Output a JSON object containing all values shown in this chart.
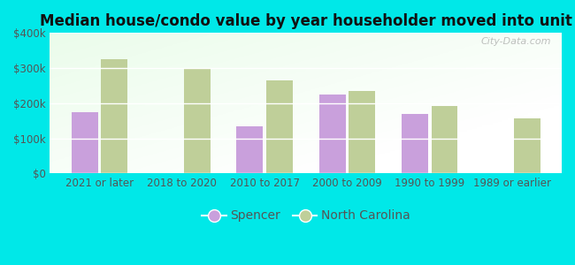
{
  "title": "Median house/condo value by year householder moved into unit",
  "categories": [
    "2021 or later",
    "2018 to 2020",
    "2010 to 2017",
    "2000 to 2009",
    "1990 to 1999",
    "1989 or earlier"
  ],
  "spencer_values": [
    175000,
    null,
    135000,
    225000,
    170000,
    null
  ],
  "nc_values": [
    325000,
    298000,
    265000,
    235000,
    193000,
    158000
  ],
  "spencer_color": "#c9a0dc",
  "nc_color": "#bfcf99",
  "background_color": "#00e8e8",
  "ylabel_ticks": [
    "$0",
    "$100k",
    "$200k",
    "$300k",
    "$400k"
  ],
  "ytick_values": [
    0,
    100000,
    200000,
    300000,
    400000
  ],
  "ylim": [
    0,
    400000
  ],
  "watermark": "City-Data.com",
  "legend_spencer": "Spencer",
  "legend_nc": "North Carolina",
  "bar_width": 0.32,
  "bar_gap": 0.04,
  "tick_color": "#555555",
  "title_fontsize": 12,
  "tick_fontsize": 8.5
}
